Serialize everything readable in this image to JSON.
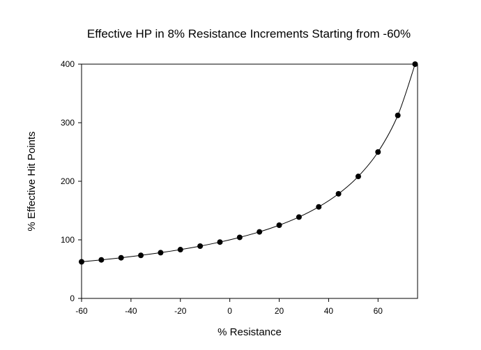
{
  "chart_data": {
    "type": "line",
    "title": "Effective HP in 8% Resistance Increments Starting from -60%",
    "xlabel": "% Resistance",
    "ylabel": "% Effective Hit Points",
    "xlim": [
      -60,
      76
    ],
    "ylim": [
      0,
      400
    ],
    "xticks": [
      -60,
      -40,
      -20,
      0,
      20,
      40,
      60
    ],
    "yticks": [
      0,
      100,
      200,
      300,
      400
    ],
    "grid": false,
    "legend": null,
    "series": [
      {
        "name": "Effective HP",
        "marker": "circle",
        "color": "#000000",
        "x": [
          -60,
          -52,
          -44,
          -36,
          -28,
          -20,
          -12,
          -4,
          4,
          12,
          20,
          28,
          36,
          44,
          52,
          60,
          68,
          75
        ],
        "y": [
          62.5,
          65.8,
          69.4,
          73.5,
          78.1,
          83.3,
          89.3,
          96.2,
          104.2,
          113.6,
          125.0,
          138.9,
          156.3,
          178.6,
          208.3,
          250.0,
          312.5,
          400.0
        ]
      }
    ]
  },
  "colors": {
    "line": "#000000",
    "background": "#ffffff"
  }
}
